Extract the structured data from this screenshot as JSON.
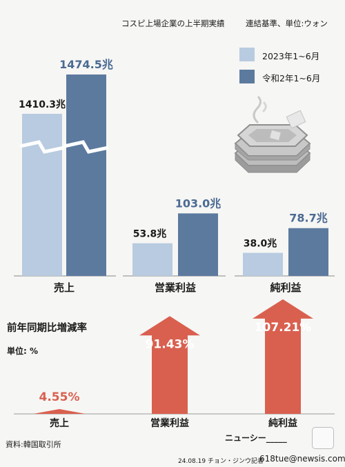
{
  "header": {
    "title": "コスピ上場企業の上半期実績",
    "basis": "連結基準、単位:ウォン"
  },
  "legend": [
    {
      "label": "2023年1~6月",
      "color": "#b8cbe0"
    },
    {
      "label": "令和2年1~6月",
      "color": "#5c7a9e"
    }
  ],
  "change_section": {
    "title": "前年同期比増減率",
    "unit": "単位: %"
  },
  "footer": {
    "source": "資料:韓国取引所",
    "brand": "ニューシー_____",
    "credit": "24.08.19 チョン・ジンウ記者",
    "email": "618tue@newsis.com"
  },
  "chart_data": [
    {
      "type": "bar",
      "categories": [
        "売上",
        "営業利益",
        "純利益"
      ],
      "series": [
        {
          "name": "2023年1~6月",
          "values": [
            1410.3,
            53.8,
            38.0
          ],
          "labels": [
            "1410.3兆",
            "53.8兆",
            "38.0兆"
          ]
        },
        {
          "name": "令和2年1~6月",
          "values": [
            1474.5,
            103.0,
            78.7
          ],
          "labels": [
            "1474.5兆",
            "103.0兆",
            "78.7兆"
          ]
        }
      ],
      "colors": [
        "#b8cbe0",
        "#5c7a9e"
      ],
      "axis_break": true
    },
    {
      "type": "bar",
      "title": "前年同期比増減率",
      "ylabel": "単位: %",
      "categories": [
        "売上",
        "営業利益",
        "純利益"
      ],
      "values": [
        4.55,
        91.43,
        107.21
      ],
      "labels": [
        "4.55%",
        "91.43%",
        "107.21%"
      ],
      "color": "#d9604f"
    }
  ]
}
